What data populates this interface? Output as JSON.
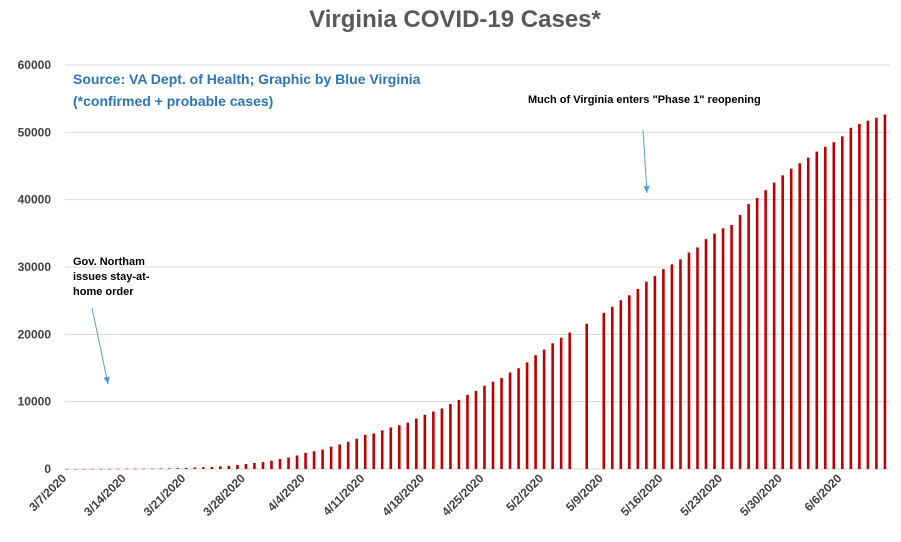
{
  "chart_data": {
    "type": "bar",
    "title": "Virginia COVID-19 Cases*",
    "source_lines": [
      "Source: VA Dept. of Health; Graphic by Blue Virginia",
      "(*confirmed + probable cases)"
    ],
    "xlabel": "",
    "ylabel": "",
    "ylim": [
      0,
      60000
    ],
    "yticks": [
      0,
      10000,
      20000,
      30000,
      40000,
      50000,
      60000
    ],
    "xtick_labels": [
      "3/7/2020",
      "3/14/2020",
      "3/21/2020",
      "3/28/2020",
      "4/4/2020",
      "4/11/2020",
      "4/18/2020",
      "4/25/2020",
      "5/2/2020",
      "5/9/2020",
      "5/16/2020",
      "5/23/2020",
      "5/30/2020",
      "6/6/2020"
    ],
    "grid": true,
    "start_date": "3/7/2020",
    "categories": [
      "3/7/2020",
      "3/8/2020",
      "3/9/2020",
      "3/10/2020",
      "3/11/2020",
      "3/12/2020",
      "3/13/2020",
      "3/14/2020",
      "3/15/2020",
      "3/16/2020",
      "3/17/2020",
      "3/18/2020",
      "3/19/2020",
      "3/20/2020",
      "3/21/2020",
      "3/22/2020",
      "3/23/2020",
      "3/24/2020",
      "3/25/2020",
      "3/26/2020",
      "3/27/2020",
      "3/28/2020",
      "3/29/2020",
      "3/30/2020",
      "3/31/2020",
      "4/1/2020",
      "4/2/2020",
      "4/3/2020",
      "4/4/2020",
      "4/5/2020",
      "4/6/2020",
      "4/7/2020",
      "4/8/2020",
      "4/9/2020",
      "4/10/2020",
      "4/11/2020",
      "4/12/2020",
      "4/13/2020",
      "4/14/2020",
      "4/15/2020",
      "4/16/2020",
      "4/17/2020",
      "4/18/2020",
      "4/19/2020",
      "4/20/2020",
      "4/21/2020",
      "4/22/2020",
      "4/23/2020",
      "4/24/2020",
      "4/25/2020",
      "4/26/2020",
      "4/27/2020",
      "4/28/2020",
      "4/29/2020",
      "4/30/2020",
      "5/1/2020",
      "5/2/2020",
      "5/3/2020",
      "5/4/2020",
      "5/5/2020",
      "5/6/2020",
      "5/7/2020",
      "5/8/2020",
      "5/9/2020",
      "5/10/2020",
      "5/11/2020",
      "5/12/2020",
      "5/13/2020",
      "5/14/2020",
      "5/15/2020",
      "5/16/2020",
      "5/17/2020",
      "5/18/2020",
      "5/19/2020",
      "5/20/2020",
      "5/21/2020",
      "5/22/2020",
      "5/23/2020",
      "5/24/2020",
      "5/25/2020",
      "5/26/2020",
      "5/27/2020",
      "5/28/2020",
      "5/29/2020",
      "5/30/2020",
      "5/31/2020",
      "6/1/2020",
      "6/2/2020",
      "6/3/2020",
      "6/4/2020",
      "6/5/2020",
      "6/6/2020",
      "6/7/2020",
      "6/8/2020",
      "6/9/2020",
      "6/10/2020",
      "6/11/2020"
    ],
    "values": [
      2,
      2,
      5,
      8,
      9,
      17,
      30,
      41,
      45,
      51,
      67,
      77,
      99,
      114,
      152,
      219,
      254,
      290,
      391,
      460,
      604,
      739,
      890,
      1020,
      1250,
      1484,
      1706,
      2012,
      2407,
      2637,
      2878,
      3333,
      3645,
      4042,
      4509,
      5077,
      5274,
      5747,
      6171,
      6500,
      6889,
      7491,
      8053,
      8537,
      8990,
      9630,
      10266,
      10998,
      11594,
      12366,
      12970,
      13535,
      14339,
      14961,
      15846,
      16901,
      17731,
      18671,
      19492,
      20256,
      0,
      21570,
      0,
      23196,
      24081,
      25070,
      25800,
      26746,
      27813,
      28672,
      29683,
      30388,
      31140,
      32145,
      32908,
      34137,
      34950,
      35749,
      36244,
      37727,
      39342,
      40249,
      41401,
      42533,
      43611,
      44607,
      45398,
      46239,
      47142,
      47856,
      48532,
      49397,
      50681,
      51251,
      51738,
      52177,
      52647
    ],
    "color": "#c00000",
    "annotations": [
      {
        "lines": [
          "Gov. Northam",
          "issues stay-at-",
          "home order"
        ],
        "date": "3/30/2020"
      },
      {
        "lines": [
          "Much of Virginia enters \"Phase 1\" reopening"
        ],
        "date": "5/15/2020"
      }
    ]
  }
}
